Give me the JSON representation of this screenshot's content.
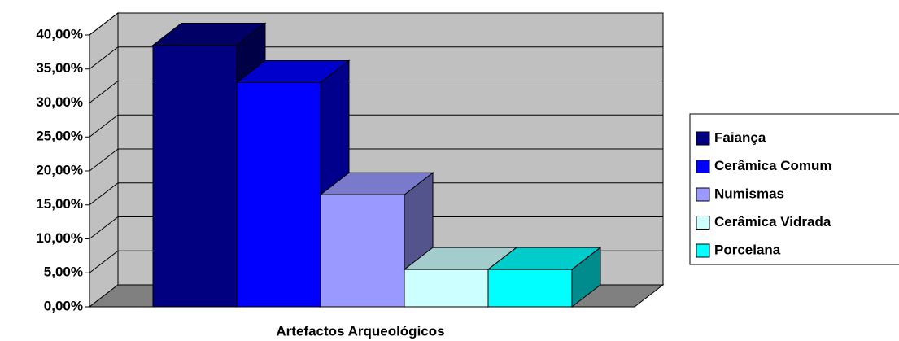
{
  "chart_data": {
    "type": "bar3d",
    "categories": [
      "Artefactos Arqueológicos"
    ],
    "series": [
      {
        "name": "Faiança",
        "color": "#000080",
        "values": [
          38.5
        ]
      },
      {
        "name": "Cerâmica Comum",
        "color": "#0000ff",
        "values": [
          33
        ]
      },
      {
        "name": "Numismas",
        "color": "#9999ff",
        "values": [
          16.5
        ]
      },
      {
        "name": "Cerâmica Vidrada",
        "color": "#ccffff",
        "values": [
          5.5
        ]
      },
      {
        "name": "Porcelana",
        "color": "#00ffff",
        "values": [
          5.5
        ]
      }
    ],
    "ylim": [
      0,
      40
    ],
    "yticks": [
      {
        "value": 0,
        "label": "0,00%"
      },
      {
        "value": 5,
        "label": "5,00%"
      },
      {
        "value": 10,
        "label": "10,00%"
      },
      {
        "value": 15,
        "label": "15,00%"
      },
      {
        "value": 20,
        "label": "20,00%"
      },
      {
        "value": 25,
        "label": "25,00%"
      },
      {
        "value": 30,
        "label": "30,00%"
      },
      {
        "value": 35,
        "label": "35,00%"
      },
      {
        "value": 40,
        "label": "40,00%"
      }
    ],
    "grid": true,
    "legend": "right"
  }
}
